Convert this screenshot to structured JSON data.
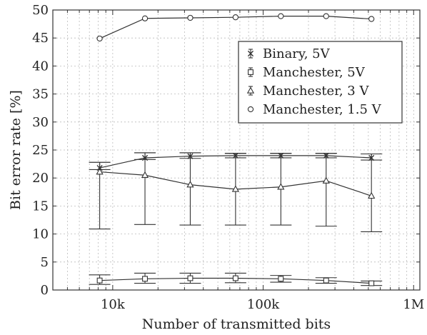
{
  "chart_data": {
    "type": "line",
    "xscale": "log",
    "x": [
      8192,
      16384,
      32768,
      65536,
      131072,
      262144,
      524288
    ],
    "xlim": [
      4000,
      1100000
    ],
    "ylim": [
      0,
      50
    ],
    "xticks": [
      10000,
      100000,
      1000000
    ],
    "xtick_labels": [
      "10k",
      "100k",
      "1M"
    ],
    "yticks": [
      0,
      5,
      10,
      15,
      20,
      25,
      30,
      35,
      40,
      45,
      50
    ],
    "xlabel": "Number of transmitted bits",
    "ylabel": "Bit error rate [%]",
    "grid": true,
    "legend_position": "right",
    "series": [
      {
        "name": "Binary, 5V",
        "marker": "x",
        "values": [
          21.8,
          23.6,
          23.9,
          24.0,
          24.0,
          24.0,
          23.6
        ],
        "err_low": [
          21.5,
          23.3,
          23.5,
          23.6,
          23.6,
          23.6,
          23.2
        ],
        "err_high": [
          22.8,
          24.5,
          24.5,
          24.4,
          24.4,
          24.4,
          24.3
        ]
      },
      {
        "name": "Manchester, 5V",
        "marker": "square",
        "values": [
          1.7,
          2.0,
          2.1,
          2.1,
          2.0,
          1.7,
          1.2
        ],
        "err_low": [
          1.0,
          1.2,
          1.2,
          1.3,
          1.4,
          1.2,
          0.8
        ],
        "err_high": [
          2.7,
          3.0,
          3.0,
          3.0,
          2.6,
          2.2,
          1.6
        ]
      },
      {
        "name": "Manchester, 3 V",
        "marker": "triangle",
        "values": [
          21.1,
          20.5,
          18.8,
          18.0,
          18.4,
          19.5,
          16.8
        ],
        "err_low": [
          10.9,
          11.7,
          11.6,
          11.6,
          11.6,
          11.4,
          10.4
        ],
        "err_high": [
          22.8,
          24.5,
          24.5,
          24.4,
          24.4,
          24.4,
          24.3
        ]
      },
      {
        "name": "Manchester, 1.5 V",
        "marker": "circle",
        "values": [
          44.9,
          48.5,
          48.6,
          48.7,
          48.9,
          48.9,
          48.4
        ]
      }
    ]
  }
}
